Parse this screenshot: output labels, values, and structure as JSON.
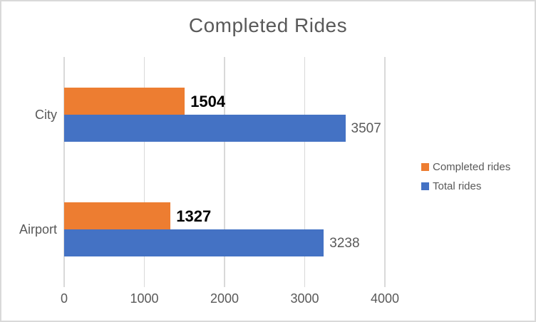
{
  "chart_data": {
    "type": "bar",
    "orientation": "horizontal",
    "title": "Completed Rides",
    "categories": [
      "City",
      "Airport"
    ],
    "series": [
      {
        "name": "Completed rides",
        "color": "#ED7D31",
        "values": [
          1504,
          1327
        ],
        "data_labels": [
          "1504",
          "1327"
        ],
        "label_color": "#000000",
        "label_bold": true,
        "label_size": 22
      },
      {
        "name": "Total rides",
        "color": "#4472C4",
        "values": [
          3507,
          3238
        ],
        "data_labels": [
          "3507",
          "3238"
        ],
        "label_color": "#595959",
        "label_bold": false,
        "label_size": 19
      }
    ],
    "xlabel": "",
    "ylabel": "",
    "xlim": [
      0,
      4000
    ],
    "x_ticks": [
      0,
      1000,
      2000,
      3000,
      4000
    ],
    "x_tick_labels": [
      "0",
      "1000",
      "2000",
      "3000",
      "4000"
    ],
    "grid": true,
    "legend_position": "right"
  },
  "colors": {
    "grid": "#D9D9D9",
    "axis_text": "#595959",
    "title_text": "#595959",
    "chart_border": "#D9D9D9",
    "background": "#FFFFFF"
  }
}
